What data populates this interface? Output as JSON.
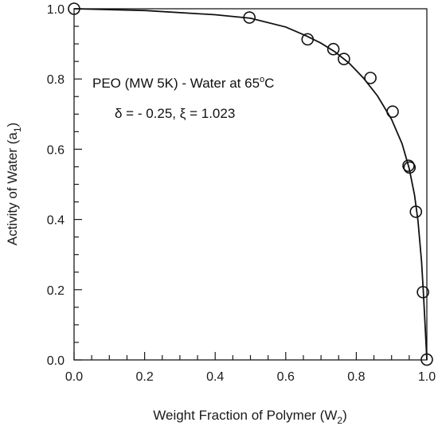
{
  "chart_data": {
    "type": "scatter",
    "xlabel": {
      "main": "Weight Fraction of Polymer (W",
      "sub": "2",
      "end": ")"
    },
    "ylabel": {
      "main": "Activity of Water (a",
      "sub": "1",
      "end": ")"
    },
    "xlim": [
      0,
      1
    ],
    "ylim": [
      0,
      1
    ],
    "x_major_ticks": [
      0.0,
      0.2,
      0.4,
      0.6,
      0.8,
      1.0
    ],
    "y_major_ticks": [
      0.0,
      0.2,
      0.4,
      0.6,
      0.8,
      1.0
    ],
    "x_tick_labels": [
      "0.0",
      "0.2",
      "0.4",
      "0.6",
      "0.8",
      "1.0"
    ],
    "y_tick_labels": [
      "0.0",
      "0.2",
      "0.4",
      "0.6",
      "0.8",
      "1.0"
    ],
    "minor_step": 0.05,
    "grid": false,
    "annotations": {
      "line1_main": "PEO (MW 5K) - Water at 65",
      "line1_sup": "o",
      "line1_end": "C",
      "line2": "δ = - 0.25,  ξ = 1.023"
    },
    "series": [
      {
        "type": "scatter",
        "marker": "open-circle",
        "x": [
          0.0,
          0.497,
          0.662,
          0.735,
          0.765,
          0.84,
          0.903,
          0.948,
          0.951,
          0.969,
          0.989,
          1.0
        ],
        "y": [
          1.0,
          0.975,
          0.913,
          0.885,
          0.857,
          0.803,
          0.707,
          0.553,
          0.548,
          0.422,
          0.193,
          0.001
        ]
      },
      {
        "type": "line",
        "x": [
          0.0,
          0.2,
          0.4,
          0.5,
          0.6,
          0.66,
          0.7,
          0.74,
          0.78,
          0.82,
          0.86,
          0.9,
          0.93,
          0.95,
          0.965,
          0.975,
          0.985,
          0.99,
          0.995,
          1.0
        ],
        "y": [
          1.0,
          0.995,
          0.983,
          0.973,
          0.948,
          0.922,
          0.902,
          0.877,
          0.845,
          0.803,
          0.752,
          0.685,
          0.615,
          0.545,
          0.47,
          0.395,
          0.28,
          0.195,
          0.1,
          0.0
        ]
      }
    ],
    "colors": {
      "line": "#111111",
      "marker": "#111111",
      "axis": "#1a1a1a"
    }
  }
}
